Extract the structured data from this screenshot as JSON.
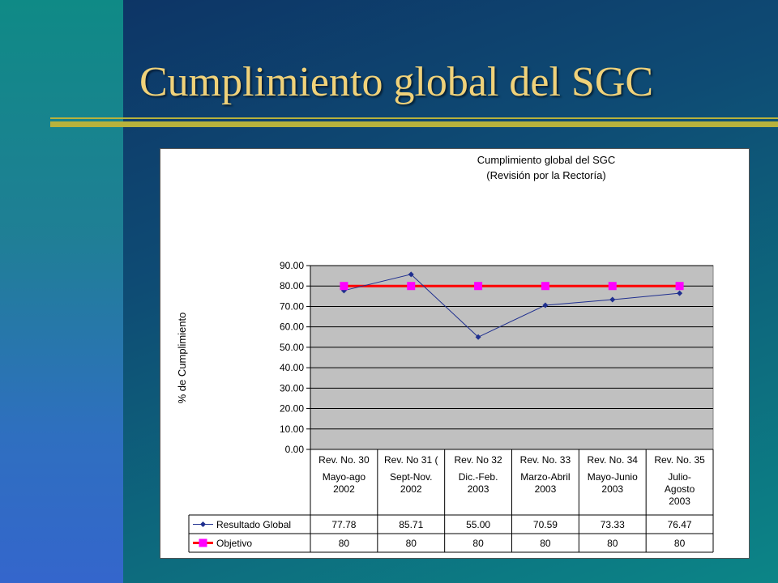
{
  "slide": {
    "title": "Cumplimiento global del SGC"
  },
  "colors": {
    "title_text": "#f0d27a",
    "accent_rule": "#b8b23c",
    "plot_area": "#c0c0c0",
    "series_resultado": "#1f2f8f",
    "series_objetivo_line": "#ff0000",
    "series_objetivo_marker": "#ff00ff"
  },
  "chart_data": {
    "type": "line",
    "title": "Cumplimiento global del SGC",
    "subtitle": "(Revisión por la Rectoría)",
    "xlabel": "",
    "ylabel": "% de Cumplimiento",
    "ylim": [
      0,
      90
    ],
    "yticks": [
      "0.00",
      "10.00",
      "20.00",
      "30.00",
      "40.00",
      "50.00",
      "60.00",
      "70.00",
      "80.00",
      "90.00"
    ],
    "grid": true,
    "categories": [
      {
        "rev": "Rev. No. 30",
        "lines": [
          "Mayo-ago",
          "2002"
        ]
      },
      {
        "rev": "Rev. No 31 (",
        "lines": [
          "Sept-Nov.",
          "2002"
        ]
      },
      {
        "rev": "Rev. No 32",
        "lines": [
          "Dic.-Feb.",
          "2003"
        ]
      },
      {
        "rev": "Rev. No. 33",
        "lines": [
          "Marzo-Abril",
          "2003"
        ]
      },
      {
        "rev": "Rev. No. 34",
        "lines": [
          "Mayo-Junio",
          "2003"
        ]
      },
      {
        "rev": "Rev. No. 35",
        "lines": [
          "Julio-",
          "Agosto",
          "2003"
        ]
      }
    ],
    "series": [
      {
        "name": "Resultado Global",
        "values": [
          77.78,
          85.71,
          55.0,
          70.59,
          73.33,
          76.47
        ],
        "labels": [
          "77.78",
          "85.71",
          "55.00",
          "70.59",
          "73.33",
          "76.47"
        ]
      },
      {
        "name": "Objetivo",
        "values": [
          80,
          80,
          80,
          80,
          80,
          80
        ],
        "labels": [
          "80",
          "80",
          "80",
          "80",
          "80",
          "80"
        ]
      }
    ]
  }
}
